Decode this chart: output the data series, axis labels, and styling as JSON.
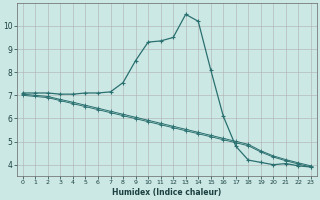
{
  "xlabel": "Humidex (Indice chaleur)",
  "background_color": "#cce8e4",
  "grid_color": "#aaaaaa",
  "line_color": "#2a7070",
  "xlim": [
    -0.5,
    23.5
  ],
  "ylim": [
    3.5,
    11.0
  ],
  "xticks": [
    0,
    1,
    2,
    3,
    4,
    5,
    6,
    7,
    8,
    9,
    10,
    11,
    12,
    13,
    14,
    15,
    16,
    17,
    18,
    19,
    20,
    21,
    22,
    23
  ],
  "yticks": [
    4,
    5,
    6,
    7,
    8,
    9,
    10
  ],
  "line1_x": [
    0,
    1,
    2,
    3,
    4,
    5,
    6,
    7,
    8,
    9,
    10,
    11,
    12,
    13,
    14,
    15,
    16,
    17,
    18,
    19,
    20,
    21,
    22,
    23
  ],
  "line1_y": [
    7.1,
    7.1,
    7.1,
    7.05,
    7.05,
    7.1,
    7.1,
    7.15,
    7.55,
    8.5,
    9.3,
    9.35,
    9.5,
    10.5,
    10.2,
    8.1,
    6.1,
    4.8,
    4.2,
    4.1,
    4.0,
    4.05,
    3.95,
    3.9
  ],
  "line2_x": [
    0,
    1,
    2,
    3,
    4,
    5,
    6,
    7,
    8,
    9,
    10,
    11,
    12,
    13,
    14,
    15,
    16,
    17,
    18,
    19,
    20,
    21,
    22,
    23
  ],
  "line2_y": [
    7.05,
    7.0,
    6.95,
    6.82,
    6.7,
    6.57,
    6.44,
    6.31,
    6.18,
    6.05,
    5.92,
    5.79,
    5.66,
    5.53,
    5.4,
    5.27,
    5.14,
    5.01,
    4.88,
    4.6,
    4.38,
    4.22,
    4.08,
    3.95
  ],
  "line3_x": [
    0,
    1,
    2,
    3,
    4,
    5,
    6,
    7,
    8,
    9,
    10,
    11,
    12,
    13,
    14,
    15,
    16,
    17,
    18,
    19,
    20,
    21,
    22,
    23
  ],
  "line3_y": [
    7.0,
    6.95,
    6.9,
    6.77,
    6.64,
    6.51,
    6.38,
    6.25,
    6.12,
    5.99,
    5.86,
    5.73,
    5.6,
    5.47,
    5.34,
    5.21,
    5.08,
    4.95,
    4.82,
    4.55,
    4.33,
    4.17,
    4.03,
    3.9
  ]
}
